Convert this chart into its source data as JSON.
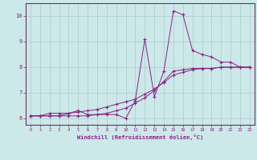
{
  "xlabel": "Windchill (Refroidissement éolien,°C)",
  "bg_color": "#cde8e8",
  "grid_color": "#aacccc",
  "line_color": "#882288",
  "spine_color": "#663366",
  "xlim": [
    -0.5,
    23.5
  ],
  "ylim": [
    5.75,
    10.5
  ],
  "xticks": [
    0,
    1,
    2,
    3,
    4,
    5,
    6,
    7,
    8,
    9,
    10,
    11,
    12,
    13,
    14,
    15,
    16,
    17,
    18,
    19,
    20,
    21,
    22,
    23
  ],
  "yticks": [
    6,
    7,
    8,
    9,
    10
  ],
  "line1_x": [
    0,
    1,
    2,
    3,
    4,
    5,
    6,
    7,
    8,
    9,
    10,
    11,
    12,
    13,
    14,
    15,
    16,
    17,
    18,
    19,
    20,
    21,
    22,
    23
  ],
  "line1_y": [
    6.1,
    6.1,
    6.2,
    6.2,
    6.2,
    6.3,
    6.15,
    6.15,
    6.15,
    6.15,
    6.0,
    6.7,
    9.1,
    6.85,
    7.85,
    10.2,
    10.05,
    8.65,
    8.5,
    8.4,
    8.2,
    8.2,
    8.0,
    8.0
  ],
  "line2_x": [
    0,
    1,
    2,
    3,
    4,
    5,
    6,
    7,
    8,
    9,
    10,
    11,
    12,
    13,
    14,
    15,
    16,
    17,
    18,
    19,
    20,
    21,
    22,
    23
  ],
  "line2_y": [
    6.1,
    6.1,
    6.1,
    6.1,
    6.1,
    6.1,
    6.1,
    6.15,
    6.2,
    6.3,
    6.4,
    6.6,
    6.8,
    7.1,
    7.45,
    7.85,
    7.9,
    7.95,
    7.95,
    7.95,
    8.0,
    8.0,
    8.0,
    8.0
  ],
  "line3_x": [
    0,
    1,
    2,
    3,
    4,
    5,
    6,
    7,
    8,
    9,
    10,
    11,
    12,
    13,
    14,
    15,
    16,
    17,
    18,
    19,
    20,
    21,
    22,
    23
  ],
  "line3_y": [
    6.1,
    6.1,
    6.1,
    6.1,
    6.2,
    6.25,
    6.3,
    6.35,
    6.45,
    6.55,
    6.65,
    6.75,
    6.95,
    7.15,
    7.4,
    7.7,
    7.8,
    7.9,
    7.95,
    7.95,
    8.0,
    8.0,
    8.0,
    8.0
  ]
}
